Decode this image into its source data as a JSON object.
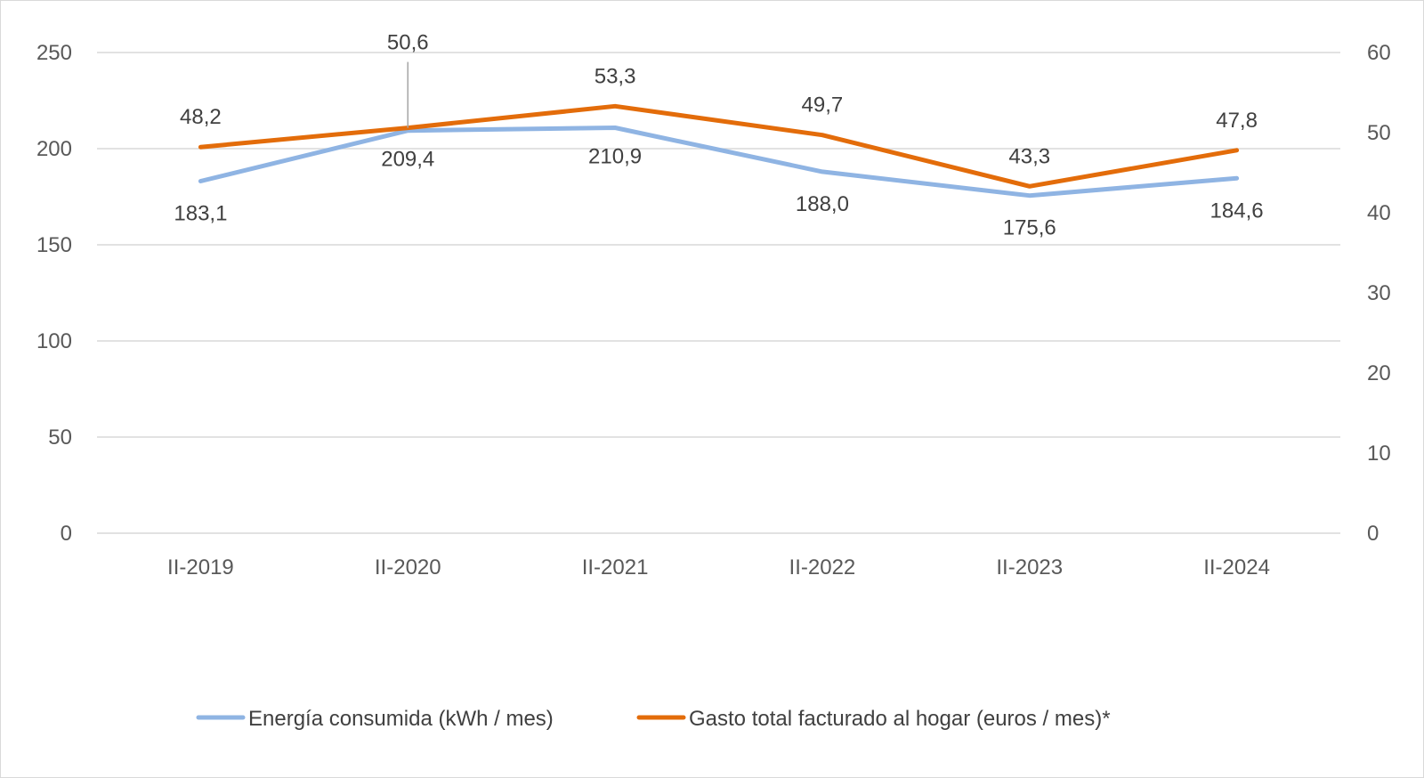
{
  "chart_data": {
    "type": "line",
    "categories": [
      "II-2019",
      "II-2020",
      "II-2021",
      "II-2022",
      "II-2023",
      "II-2024"
    ],
    "series": [
      {
        "name": "Energía consumida (kWh / mes)",
        "axis": "left",
        "color": "#8fb4e3",
        "values": [
          183.1,
          209.4,
          210.9,
          188.0,
          175.6,
          184.6
        ],
        "labels": [
          "183,1",
          "209,4",
          "210,9",
          "188,0",
          "175,6",
          "184,6"
        ],
        "label_position": "below"
      },
      {
        "name": "Gasto total facturado al hogar (euros / mes)*",
        "axis": "right",
        "color": "#e36c0a",
        "values": [
          48.2,
          50.6,
          53.3,
          49.7,
          43.3,
          47.8
        ],
        "labels": [
          "48,2",
          "50,6",
          "53,3",
          "49,7",
          "43,3",
          "47,8"
        ],
        "label_position": "above"
      }
    ],
    "y_left": {
      "ylim": [
        0,
        250
      ],
      "ticks": [
        0,
        50,
        100,
        150,
        200,
        250
      ]
    },
    "y_right": {
      "ylim": [
        0,
        60
      ],
      "ticks": [
        0,
        10,
        20,
        30,
        40,
        50,
        60
      ]
    },
    "grid": true,
    "legend_position": "bottom"
  }
}
